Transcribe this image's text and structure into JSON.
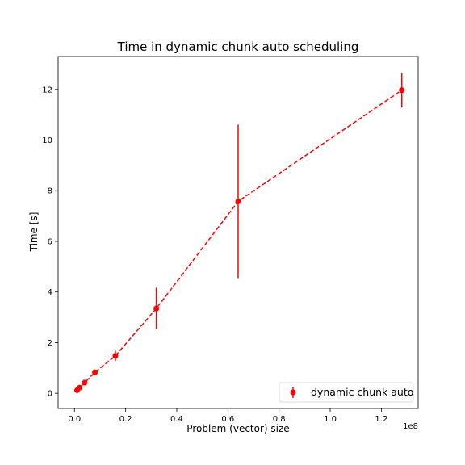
{
  "chart_data": {
    "type": "line",
    "title": "Time in dynamic chunk auto scheduling",
    "xlabel": "Problem (vector) size",
    "ylabel": "Time [s]",
    "x_offset_text": "1e8",
    "xlim": [
      -0.064,
      1.344
    ],
    "ylim": [
      -0.6,
      13.3
    ],
    "x_ticks": [
      0.0,
      0.2,
      0.4,
      0.6,
      0.8,
      1.0,
      1.2
    ],
    "x_tick_labels": [
      "0.0",
      "0.2",
      "0.4",
      "0.6",
      "0.8",
      "1.0",
      "1.2"
    ],
    "y_ticks": [
      0,
      2,
      4,
      6,
      8,
      10,
      12
    ],
    "y_tick_labels": [
      "0",
      "2",
      "4",
      "6",
      "8",
      "10",
      "12"
    ],
    "grid": false,
    "legend_position": "lower-right",
    "series": [
      {
        "name": "dynamic chunk auto",
        "color": "#ff0000",
        "linestyle": "dashed",
        "marker": "circle",
        "x": [
          0.01,
          0.02,
          0.04,
          0.08,
          0.16,
          0.32,
          0.64,
          1.28
        ],
        "y": [
          0.12,
          0.22,
          0.42,
          0.83,
          1.48,
          3.35,
          7.58,
          11.97
        ],
        "yerr": [
          0.05,
          0.06,
          0.08,
          0.1,
          0.2,
          0.82,
          3.03,
          0.68
        ]
      }
    ]
  }
}
